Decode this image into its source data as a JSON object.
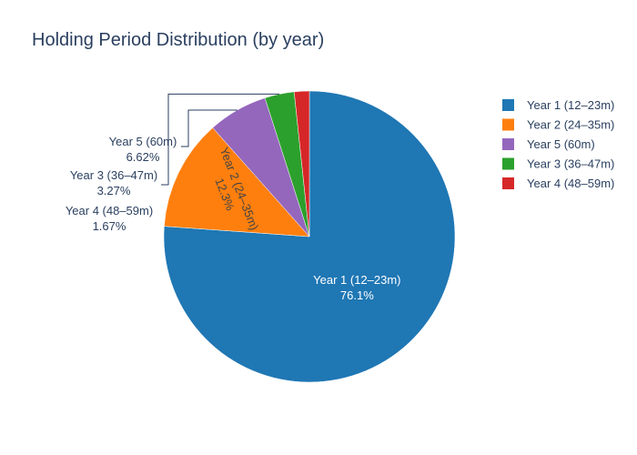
{
  "chart_data": {
    "type": "pie",
    "title": "Holding Period Distribution (by year)",
    "legend_position": "top-right",
    "slices": [
      {
        "label": "Year 1 (12–23m)",
        "value": 76.1,
        "text": "76.1%",
        "color": "#1f77b4"
      },
      {
        "label": "Year 2 (24–35m)",
        "value": 12.3,
        "text": "12.3%",
        "color": "#ff7f0e"
      },
      {
        "label": "Year 5 (60m)",
        "value": 6.62,
        "text": "6.62%",
        "color": "#9467bd"
      },
      {
        "label": "Year 3 (36–47m)",
        "value": 3.27,
        "text": "3.27%",
        "color": "#2ca02c"
      },
      {
        "label": "Year 4 (48–59m)",
        "value": 1.67,
        "text": "1.67%",
        "color": "#d62728"
      }
    ]
  }
}
